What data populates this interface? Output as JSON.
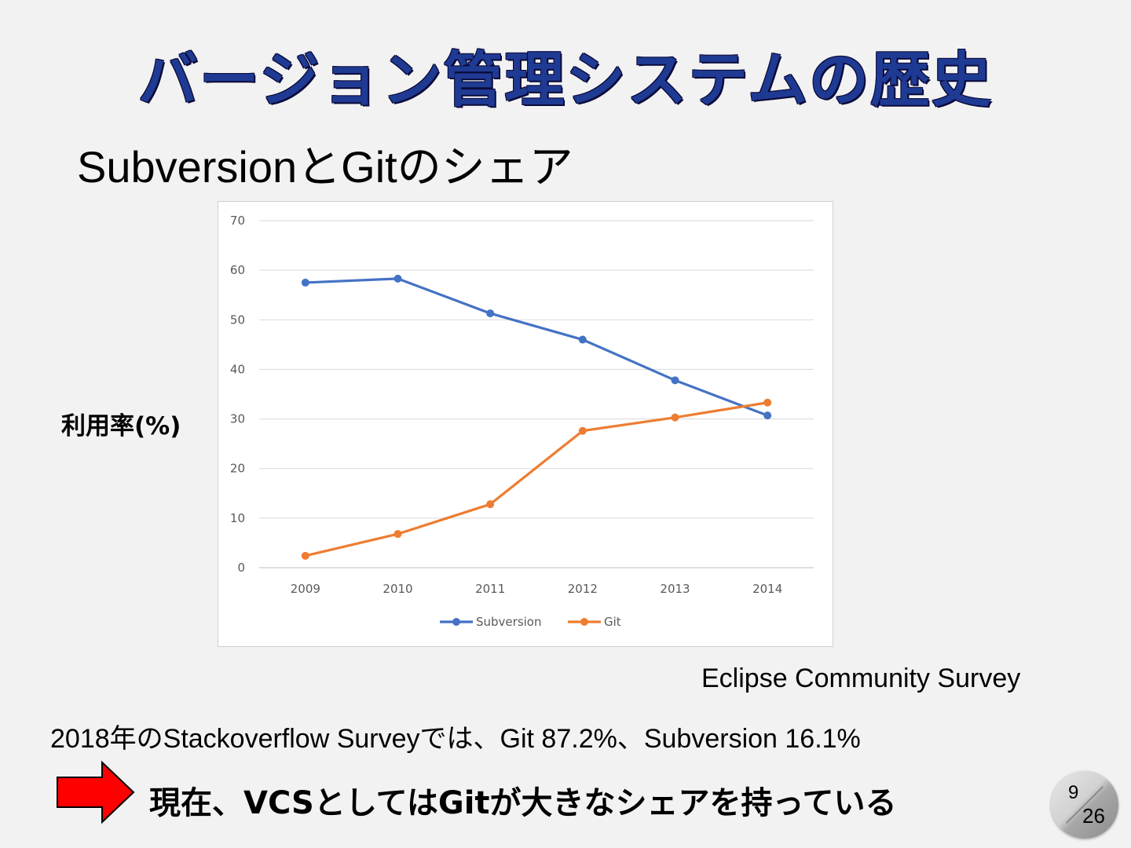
{
  "slide": {
    "title": "バージョン管理システムの歴史",
    "subtitle": "SubversionとGitのシェア",
    "y_axis_caption": "利用率(%)",
    "source": "Eclipse Community Survey",
    "note": "2018年のStackoverflow Surveyでは、Git 87.2%、Subversion 16.1%",
    "conclusion": "現在、VCSとしてはGitが大きなシェアを持っている",
    "page_number": "9",
    "page_total": "26",
    "arrow_color": "#ff0000"
  },
  "chart_data": {
    "type": "line",
    "categories": [
      "2009",
      "2010",
      "2011",
      "2012",
      "2013",
      "2014"
    ],
    "series": [
      {
        "name": "Subversion",
        "color": "#4472c4",
        "values": [
          57.5,
          58.3,
          51.3,
          46.0,
          37.8,
          30.7
        ]
      },
      {
        "name": "Git",
        "color": "#ed7d31",
        "values": [
          2.4,
          6.8,
          12.8,
          27.6,
          30.3,
          33.3
        ]
      }
    ],
    "yticks": [
      0,
      10,
      20,
      30,
      40,
      50,
      60,
      70
    ],
    "ylim": [
      0,
      70
    ],
    "grid": true,
    "legend": "bottom"
  }
}
